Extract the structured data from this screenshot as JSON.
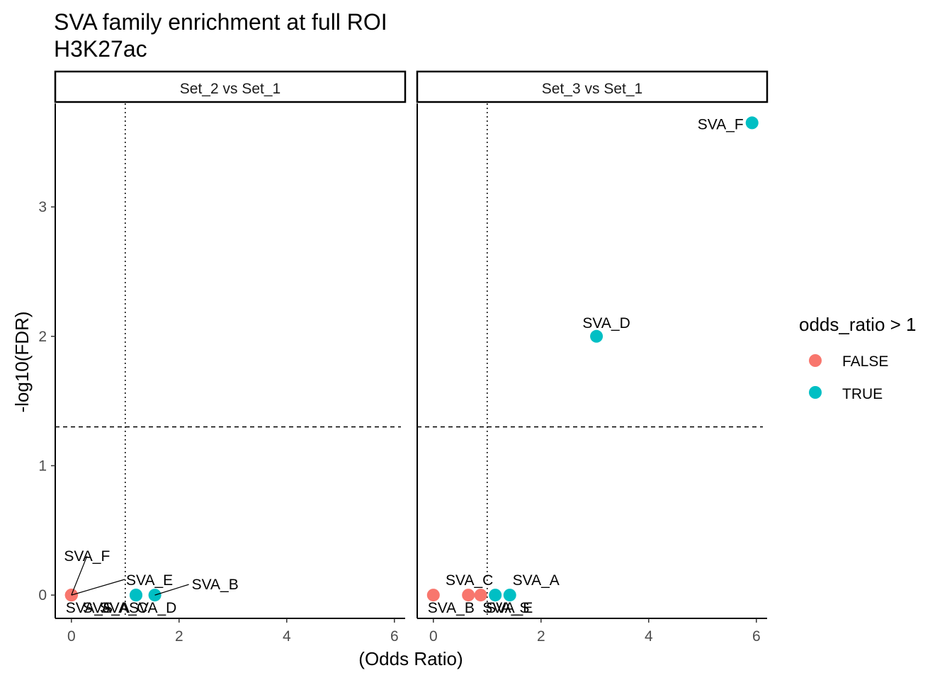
{
  "chart_data": {
    "type": "scatter",
    "title": "SVA family enrichment at full ROI",
    "subtitle": "H3K27ac",
    "xlabel": "(Odds Ratio)",
    "ylabel": "-log10(FDR)",
    "xlim": [
      -0.3,
      6.2
    ],
    "ylim": [
      -0.18,
      3.8
    ],
    "x_ticks": [
      0,
      2,
      4,
      6
    ],
    "y_ticks": [
      0,
      1,
      2,
      3
    ],
    "hline_y": 1.3,
    "vline_x": 1,
    "legend": {
      "title": "odds_ratio > 1",
      "entries": [
        {
          "label": "FALSE",
          "color": "#F8766D"
        },
        {
          "label": "TRUE",
          "color": "#00BFC4"
        }
      ]
    },
    "facets": [
      {
        "label": "Set_2 vs Set_1",
        "points": [
          {
            "name": "SVA_F",
            "x": 0.0,
            "y": 0.0,
            "group": "FALSE"
          },
          {
            "name": "SVA_S",
            "x": 0.0,
            "y": 0.0,
            "group": "FALSE"
          },
          {
            "name": "SVA_A",
            "x": 0.0,
            "y": 0.0,
            "group": "FALSE"
          },
          {
            "name": "SVA_C",
            "x": 0.0,
            "y": 0.0,
            "group": "FALSE"
          },
          {
            "name": "SVA_E",
            "x": 1.2,
            "y": 0.0,
            "group": "TRUE"
          },
          {
            "name": "SVA_D",
            "x": 1.2,
            "y": 0.0,
            "group": "TRUE"
          },
          {
            "name": "SVA_B",
            "x": 1.55,
            "y": 0.0,
            "group": "TRUE"
          }
        ]
      },
      {
        "label": "Set_3 vs Set_1",
        "points": [
          {
            "name": "SVA_B",
            "x": 0.0,
            "y": 0.0,
            "group": "FALSE"
          },
          {
            "name": "SVA_S",
            "x": 0.65,
            "y": 0.0,
            "group": "FALSE"
          },
          {
            "name": "SVA_C",
            "x": 0.88,
            "y": 0.0,
            "group": "FALSE"
          },
          {
            "name": "SVA_E",
            "x": 1.15,
            "y": 0.0,
            "group": "TRUE"
          },
          {
            "name": "SVA_A",
            "x": 1.42,
            "y": 0.0,
            "group": "TRUE"
          },
          {
            "name": "SVA_D",
            "x": 3.03,
            "y": 2.0,
            "group": "TRUE"
          },
          {
            "name": "SVA_F",
            "x": 5.92,
            "y": 3.65,
            "group": "TRUE"
          }
        ]
      }
    ]
  }
}
